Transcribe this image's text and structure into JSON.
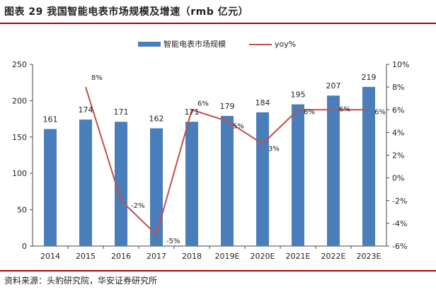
{
  "header": {
    "title": "图表 29 我国智能电表市场规模及增速（rmb 亿元）"
  },
  "footer": {
    "source": "资料来源：头豹研究院，华安证券研究所"
  },
  "colors": {
    "bar": "#4a7ebb",
    "line": "#c0504d",
    "rule": "#b00000"
  },
  "chart_data": {
    "type": "bar",
    "categories": [
      "2014",
      "2015",
      "2016",
      "2017",
      "2018",
      "2019E",
      "2020E",
      "2021E",
      "2022E",
      "2023E"
    ],
    "series": [
      {
        "name": "智能电表市场规模",
        "type": "bar",
        "axis": "left",
        "values": [
          161,
          174,
          171,
          162,
          171,
          179,
          184,
          195,
          207,
          219
        ],
        "labels": [
          "161",
          "174",
          "171",
          "162",
          "171",
          "179",
          "184",
          "195",
          "207",
          "219"
        ]
      },
      {
        "name": "yoy%",
        "type": "line",
        "axis": "right",
        "values": [
          null,
          8,
          -2,
          -5,
          6,
          5,
          3,
          6,
          6,
          6
        ],
        "labels": [
          "",
          "8%",
          "-2%",
          "-5%",
          "6%",
          "5%",
          "3%",
          "6%",
          "6%",
          "6%"
        ]
      }
    ],
    "y_left": {
      "range": [
        0,
        250
      ],
      "ticks": [
        "0",
        "50",
        "100",
        "150",
        "200",
        "250"
      ]
    },
    "y_right": {
      "range": [
        -6,
        10
      ],
      "ticks": [
        "-6%",
        "-4%",
        "-2%",
        "0%",
        "2%",
        "4%",
        "6%",
        "8%",
        "10%"
      ]
    },
    "legend_position": "top-center",
    "grid": false
  }
}
